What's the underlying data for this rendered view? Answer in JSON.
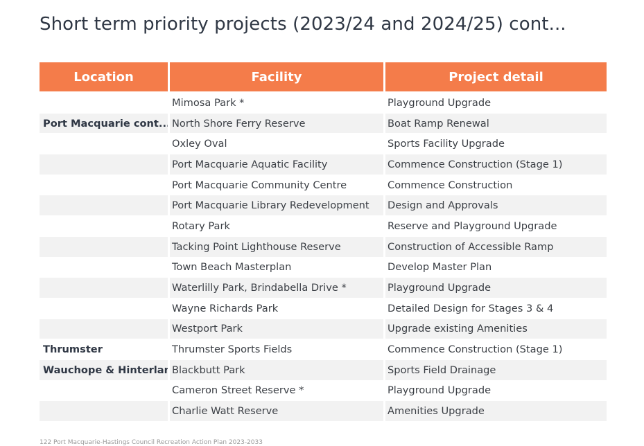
{
  "page": {
    "title": "Short term priority projects (2023/24 and 2024/25) cont..."
  },
  "table": {
    "headers": {
      "location": "Location",
      "facility": "Facility",
      "project_detail": "Project detail"
    },
    "rows": [
      {
        "location": "",
        "facility": "Mimosa Park *",
        "detail": "Playground Upgrade"
      },
      {
        "location": "Port Macquarie cont...",
        "facility": "North Shore Ferry Reserve",
        "detail": "Boat Ramp Renewal"
      },
      {
        "location": "",
        "facility": "Oxley Oval",
        "detail": "Sports Facility Upgrade"
      },
      {
        "location": "",
        "facility": "Port Macquarie Aquatic Facility",
        "detail": "Commence Construction (Stage 1)"
      },
      {
        "location": "",
        "facility": "Port Macquarie Community Centre",
        "detail": "Commence Construction"
      },
      {
        "location": "",
        "facility": "Port Macquarie Library Redevelopment",
        "detail": "Design and Approvals"
      },
      {
        "location": "",
        "facility": "Rotary Park",
        "detail": "Reserve and Playground Upgrade"
      },
      {
        "location": "",
        "facility": "Tacking Point Lighthouse Reserve",
        "detail": "Construction of Accessible Ramp"
      },
      {
        "location": "",
        "facility": "Town Beach Masterplan",
        "detail": "Develop Master Plan"
      },
      {
        "location": "",
        "facility": "Waterlilly Park, Brindabella Drive *",
        "detail": "Playground Upgrade"
      },
      {
        "location": "",
        "facility": "Wayne Richards Park",
        "detail": "Detailed Design for Stages 3 & 4"
      },
      {
        "location": "",
        "facility": "Westport Park",
        "detail": "Upgrade existing Amenities"
      },
      {
        "location": "Thrumster",
        "facility": "Thrumster Sports Fields",
        "detail": "Commence Construction (Stage 1)"
      },
      {
        "location": "Wauchope & Hinterland",
        "facility": "Blackbutt Park",
        "detail": "Sports Field Drainage"
      },
      {
        "location": "",
        "facility": "Cameron Street Reserve *",
        "detail": "Playground Upgrade"
      },
      {
        "location": "",
        "facility": "Charlie Watt Reserve",
        "detail": "Amenities Upgrade"
      }
    ]
  },
  "footer": {
    "text": "122 Port Macquarie-Hastings Council Recreation Action Plan 2023-2033"
  },
  "colors": {
    "header_bg": "#f47c4a",
    "header_text": "#ffffff",
    "row_alt_bg": "#f2f2f2",
    "title_text": "#2f3744"
  }
}
